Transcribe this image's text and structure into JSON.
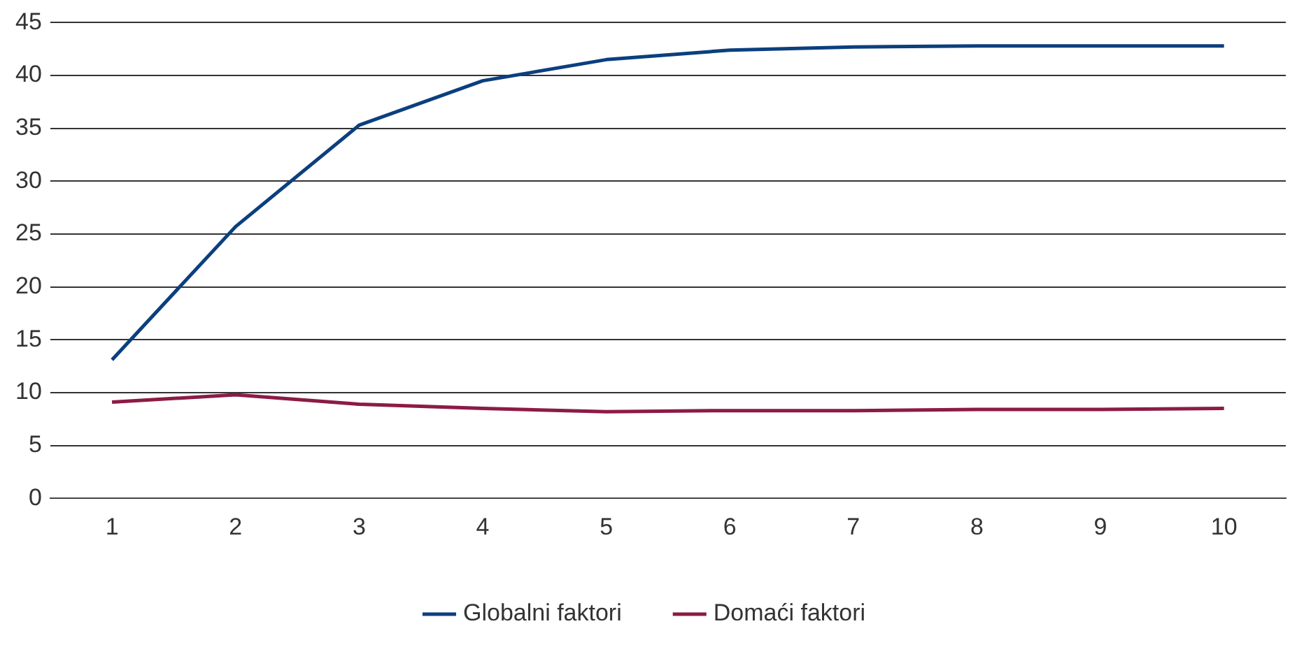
{
  "chart_data": {
    "type": "line",
    "categories": [
      "1",
      "2",
      "3",
      "4",
      "5",
      "6",
      "7",
      "8",
      "9",
      "10"
    ],
    "series": [
      {
        "name": "Globalni faktori",
        "color": "#0b3f7e",
        "values": [
          13.1,
          25.7,
          35.3,
          39.5,
          41.5,
          42.4,
          42.7,
          42.8,
          42.8,
          42.8
        ]
      },
      {
        "name": "Domaći faktori",
        "color": "#8b1b45",
        "values": [
          9.1,
          9.8,
          8.9,
          8.5,
          8.2,
          8.3,
          8.3,
          8.4,
          8.4,
          8.5
        ]
      }
    ],
    "ylim": [
      0,
      45
    ],
    "yticks": [
      0,
      5,
      10,
      15,
      20,
      25,
      30,
      35,
      40,
      45
    ],
    "grid": "y",
    "legend": "bottom",
    "marker": "none",
    "line_style": "solid"
  }
}
